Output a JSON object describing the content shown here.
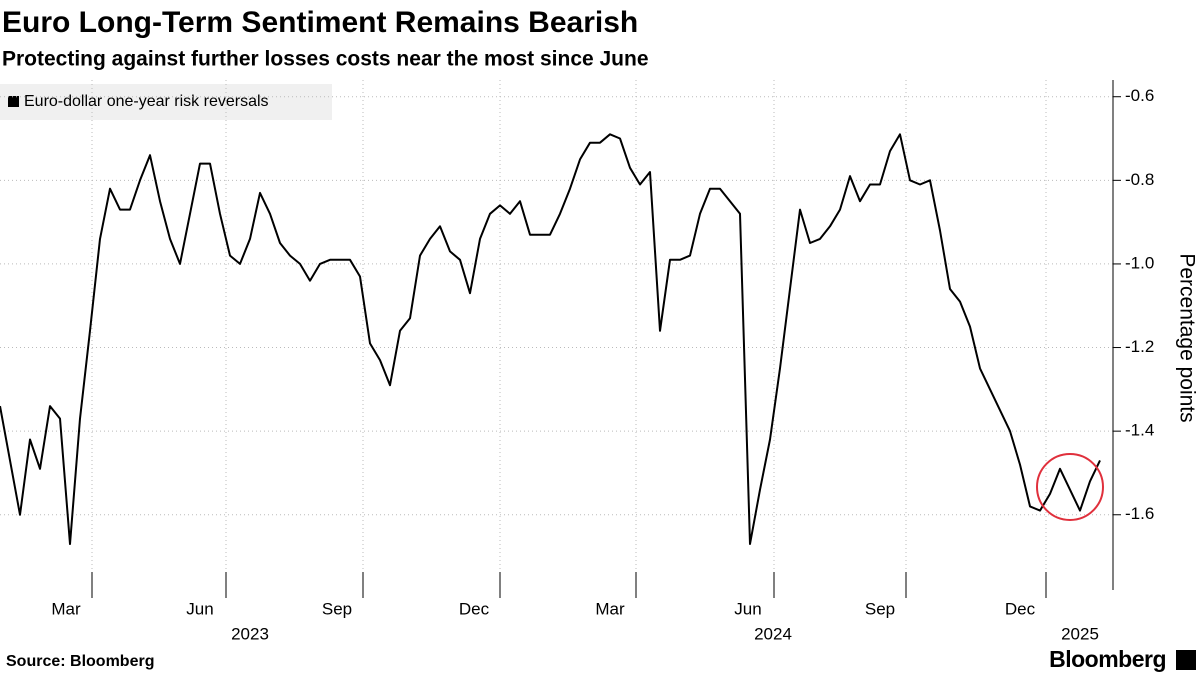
{
  "chart_data": {
    "type": "line",
    "title": "Euro Long-Term Sentiment Remains Bearish",
    "subtitle": "Protecting against further losses costs near the most since June",
    "y_label": "Percentage points",
    "source": "Source: Bloomberg",
    "logo": "Bloomberg",
    "grid": true,
    "series": [
      {
        "name": "Euro-dollar one-year risk reversals",
        "color": "#000000",
        "values": [
          -1.34,
          -1.47,
          -1.6,
          -1.42,
          -1.49,
          -1.34,
          -1.37,
          -1.67,
          -1.37,
          -1.16,
          -0.94,
          -0.82,
          -0.87,
          -0.87,
          -0.8,
          -0.74,
          -0.85,
          -0.94,
          -1.0,
          -0.88,
          -0.76,
          -0.76,
          -0.88,
          -0.98,
          -1.0,
          -0.94,
          -0.83,
          -0.88,
          -0.95,
          -0.98,
          -1.0,
          -1.04,
          -1.0,
          -0.99,
          -0.99,
          -0.99,
          -1.03,
          -1.19,
          -1.23,
          -1.29,
          -1.16,
          -1.13,
          -0.98,
          -0.94,
          -0.91,
          -0.97,
          -0.99,
          -1.07,
          -0.94,
          -0.88,
          -0.86,
          -0.88,
          -0.85,
          -0.93,
          -0.93,
          -0.93,
          -0.88,
          -0.82,
          -0.75,
          -0.71,
          -0.71,
          -0.69,
          -0.7,
          -0.77,
          -0.81,
          -0.78,
          -1.16,
          -0.99,
          -0.99,
          -0.98,
          -0.88,
          -0.82,
          -0.82,
          -0.85,
          -0.88,
          -1.67,
          -1.54,
          -1.42,
          -1.25,
          -1.06,
          -0.87,
          -0.95,
          -0.94,
          -0.91,
          -0.87,
          -0.79,
          -0.85,
          -0.81,
          -0.81,
          -0.73,
          -0.69,
          -0.8,
          -0.81,
          -0.8,
          -0.92,
          -1.06,
          -1.09,
          -1.15,
          -1.25,
          -1.3,
          -1.35,
          -1.4,
          -1.48,
          -1.58,
          -1.59,
          -1.55,
          -1.49,
          -1.54,
          -1.59,
          -1.52,
          -1.47
        ]
      }
    ],
    "xlim": [
      0,
      111
    ],
    "xticks": [
      {
        "value": 9.2,
        "label": "Mar"
      },
      {
        "value": 22.6,
        "label": "Jun"
      },
      {
        "value": 36.3,
        "label": "Sep"
      },
      {
        "value": 50,
        "label": "Dec"
      },
      {
        "value": 63.6,
        "label": "Mar"
      },
      {
        "value": 77.4,
        "label": "Jun"
      },
      {
        "value": 90.6,
        "label": "Sep"
      },
      {
        "value": 104.6,
        "label": "Dec"
      }
    ],
    "xtick_years": [
      {
        "value": 25,
        "label": "2023"
      },
      {
        "value": 77.3,
        "label": "2024"
      },
      {
        "value": 108,
        "label": "2025"
      }
    ],
    "ylim": [
      -1.78,
      -0.56
    ],
    "yticks": [
      -0.6,
      -0.8,
      {
        "value": -1,
        "label": "-1.0"
      },
      -1.2,
      -1.4,
      -1.6
    ]
  }
}
